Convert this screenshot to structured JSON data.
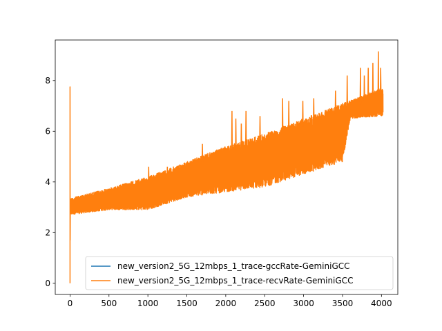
{
  "chart_data": {
    "type": "line",
    "title": "",
    "xlabel": "",
    "ylabel": "",
    "xlim": [
      -190,
      4210
    ],
    "ylim": [
      -0.44,
      9.6
    ],
    "xticks": [
      0,
      500,
      1000,
      1500,
      2000,
      2500,
      3000,
      3500,
      4000
    ],
    "yticks": [
      0,
      2,
      4,
      6,
      8
    ],
    "xtick_labels": [
      "0",
      "500",
      "1000",
      "1500",
      "2000",
      "2500",
      "3000",
      "3500",
      "4000"
    ],
    "ytick_labels": [
      "0",
      "2",
      "4",
      "6",
      "8"
    ],
    "grid": false,
    "legend_position": "lower right",
    "colors": {
      "gccRate": "#1f77b4",
      "recvRate": "#ff7f0e"
    },
    "series": [
      {
        "name": "new_version2_5G_12mbps_1_trace-gccRate-GeminiGCC",
        "color": "#1f77b4",
        "x": [
          0,
          4020
        ],
        "y": [
          3.0,
          7.0
        ]
      },
      {
        "name": "new_version2_5G_12mbps_1_trace-recvRate-GeminiGCC",
        "color": "#ff7f0e",
        "x": [
          0,
          1,
          2,
          5,
          10,
          100,
          150,
          500,
          800,
          850,
          1000,
          1500,
          2000,
          2100,
          2500,
          3000,
          3500,
          3600,
          3620,
          3800,
          3900,
          4000,
          4020
        ],
        "y": [
          0.0,
          7.75,
          1.7,
          3.3,
          3.0,
          3.1,
          2.9,
          3.5,
          3.9,
          3.2,
          3.9,
          4.2,
          4.8,
          5.9,
          5.3,
          6.0,
          5.6,
          5.9,
          6.7,
          7.3,
          7.0,
          7.4,
          6.9
        ],
        "band_x": [
          0,
          500,
          1000,
          1500,
          2000,
          2500,
          3000,
          3500,
          3600,
          4000
        ],
        "band_low": [
          2.7,
          2.9,
          2.9,
          3.4,
          3.6,
          3.8,
          4.3,
          4.8,
          6.5,
          6.6
        ],
        "band_high": [
          3.35,
          3.75,
          4.2,
          4.8,
          5.4,
          5.9,
          6.5,
          7.1,
          7.2,
          7.7
        ],
        "spike_x": [
          1010,
          1250,
          1700,
          2080,
          2130,
          2200,
          2260,
          2440,
          2730,
          2810,
          2990,
          3130,
          3410,
          3560,
          3730,
          3780,
          3830,
          3890,
          3960,
          3990
        ],
        "spike_y": [
          4.6,
          4.6,
          5.5,
          6.8,
          6.5,
          6.3,
          6.8,
          6.6,
          7.3,
          7.2,
          7.2,
          7.3,
          7.6,
          8.2,
          8.5,
          8.2,
          8.5,
          8.7,
          9.15,
          8.5
        ]
      }
    ]
  }
}
